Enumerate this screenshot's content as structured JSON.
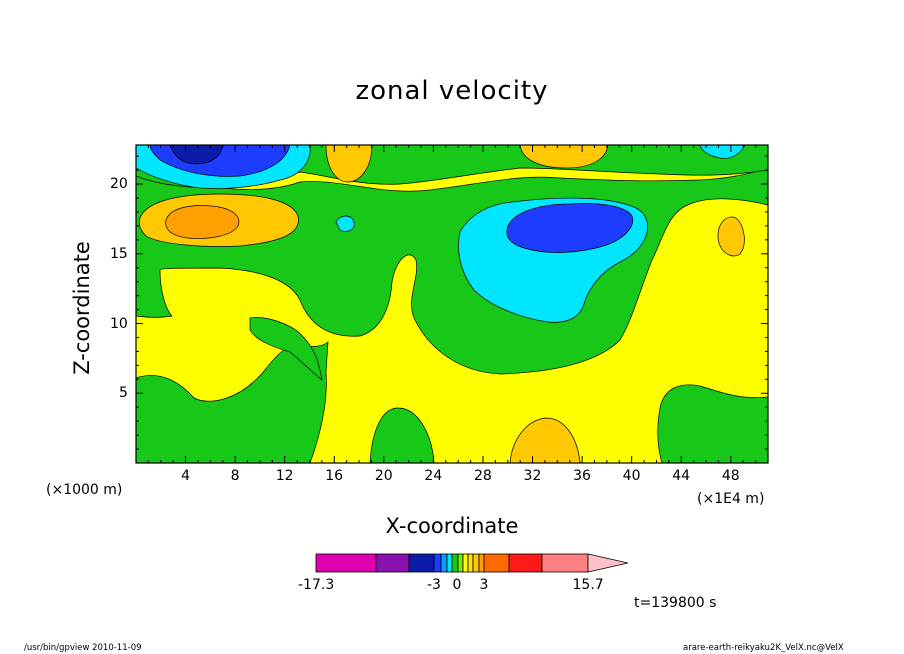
{
  "chart_data": {
    "type": "heatmap",
    "title": "zonal velocity",
    "xlabel": "X-coordinate",
    "ylabel": "Z-coordinate",
    "x_unit": "(×1E4 m)",
    "y_unit": "(×1000 m)",
    "x_ticks": [
      "4",
      "8",
      "12",
      "16",
      "20",
      "24",
      "28",
      "32",
      "36",
      "40",
      "44",
      "48"
    ],
    "y_ticks": [
      "5",
      "10",
      "15",
      "20"
    ],
    "xlim": [
      0,
      51
    ],
    "ylim": [
      0,
      22.8
    ],
    "colorbar": {
      "min": -17.3,
      "max": 15.7,
      "labels": [
        "-17.3",
        "-3",
        "0",
        "3",
        "15.7"
      ],
      "colors": [
        "#e000b0",
        "#8a10b0",
        "#0a1ca8",
        "#1e3cff",
        "#00a0ff",
        "#00e6ff",
        "#18c818",
        "#7ae800",
        "#ffff00",
        "#ffe000",
        "#ffc800",
        "#ffa000",
        "#ff6a00",
        "#ff1a1a",
        "#ff8080",
        "#ffc0c8"
      ]
    },
    "time_label": "t=139800 s"
  },
  "footer": {
    "left": "/usr/bin/gpview   2010-11-09",
    "right": "arare-earth-reikyaku2K_VelX.nc@VelX"
  }
}
